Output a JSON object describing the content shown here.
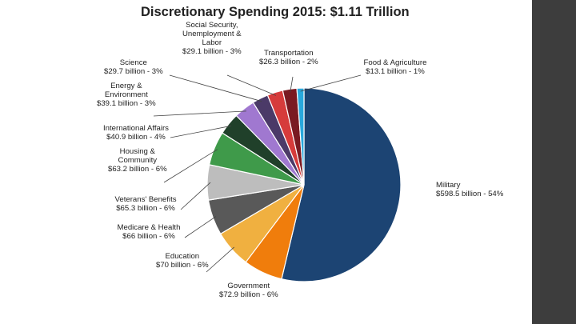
{
  "chart_data": {
    "type": "pie",
    "title": "Discretionary Spending 2015: $1.11 Trillion",
    "unit": "billion",
    "slices": [
      {
        "key": "military",
        "label_lines": [
          "Military",
          "$598.5 billion - 54%"
        ],
        "value": 598.5,
        "percent": 54,
        "color": "#1c4473"
      },
      {
        "key": "government",
        "label_lines": [
          "Government",
          "$72.9 billion - 6%"
        ],
        "value": 72.9,
        "percent": 6,
        "color": "#f07d0c"
      },
      {
        "key": "education",
        "label_lines": [
          "Education",
          "$70 billion - 6%"
        ],
        "value": 70,
        "percent": 6,
        "color": "#f0b040"
      },
      {
        "key": "medicare",
        "label_lines": [
          "Medicare & Health",
          "$66 billion - 6%"
        ],
        "value": 66,
        "percent": 6,
        "color": "#595959"
      },
      {
        "key": "veterans",
        "label_lines": [
          "Veterans' Benefits",
          "$65.3 billion - 6%"
        ],
        "value": 65.3,
        "percent": 6,
        "color": "#bdbdbd"
      },
      {
        "key": "housing",
        "label_lines": [
          "Housing &",
          "Community",
          "$63.2 billion - 6%"
        ],
        "value": 63.2,
        "percent": 6,
        "color": "#3f9a4a"
      },
      {
        "key": "international",
        "label_lines": [
          "International Affairs",
          "$40.9 billion - 4%"
        ],
        "value": 40.9,
        "percent": 4,
        "color": "#20402a"
      },
      {
        "key": "energy",
        "label_lines": [
          "Energy &",
          "Environment",
          "$39.1 billion - 3%"
        ],
        "value": 39.1,
        "percent": 3,
        "color": "#a078d0"
      },
      {
        "key": "science",
        "label_lines": [
          "Science",
          "$29.7 billion - 3%"
        ],
        "value": 29.7,
        "percent": 3,
        "color": "#4b3a68"
      },
      {
        "key": "social",
        "label_lines": [
          "Social Security,",
          "Unemployment &",
          "Labor",
          "$29.1 billion - 3%"
        ],
        "value": 29.1,
        "percent": 3,
        "color": "#d63b3b"
      },
      {
        "key": "transportation",
        "label_lines": [
          "Transportation",
          "$26.3 billion - 2%"
        ],
        "value": 26.3,
        "percent": 2,
        "color": "#7a1a22"
      },
      {
        "key": "food",
        "label_lines": [
          "Food & Agriculture",
          "$13.1 billion - 1%"
        ],
        "value": 13.1,
        "percent": 1,
        "color": "#28a8dc"
      }
    ]
  }
}
